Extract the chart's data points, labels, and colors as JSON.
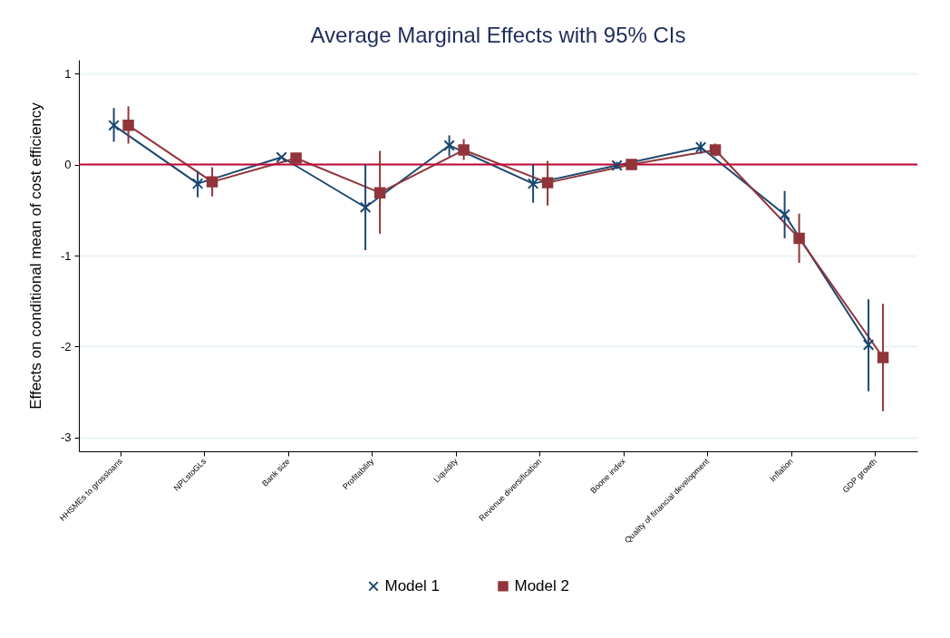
{
  "chart_data": {
    "type": "line",
    "title": "Average Marginal Effects with 95% CIs",
    "ylabel": "Effects on conditional mean of cost efficiency",
    "categories": [
      "HHSMEs to grossloans",
      "NPLstoGLs",
      "Bank size",
      "Profitability",
      "Liquidity",
      "Revenue diversification",
      "Boone index",
      "Quality of financial development",
      "Inflation",
      "GDP growth"
    ],
    "series": [
      {
        "name": "Model 1",
        "color": "#1a476f",
        "marker": "cross",
        "values": [
          0.43,
          -0.21,
          0.08,
          -0.47,
          0.21,
          -0.21,
          -0.01,
          0.19,
          -0.55,
          -1.98
        ],
        "errors": [
          [
            0.25,
            0.62
          ],
          [
            -0.36,
            -0.07
          ],
          null,
          [
            -0.94,
            0.0
          ],
          [
            0.09,
            0.32
          ],
          [
            -0.42,
            0.0
          ],
          [
            -0.05,
            0.03
          ],
          [
            0.12,
            0.25
          ],
          [
            -0.81,
            -0.29
          ],
          [
            -2.49,
            -1.48
          ]
        ]
      },
      {
        "name": "Model 2",
        "color": "#90353b",
        "marker": "square",
        "values": [
          0.43,
          -0.19,
          0.07,
          -0.31,
          0.16,
          -0.2,
          0.0,
          0.16,
          -0.81,
          -2.12
        ],
        "errors": [
          [
            0.23,
            0.64
          ],
          [
            -0.35,
            -0.03
          ],
          null,
          [
            -0.76,
            0.15
          ],
          [
            0.05,
            0.28
          ],
          [
            -0.45,
            0.04
          ],
          [
            -0.05,
            0.05
          ],
          [
            0.09,
            0.23
          ],
          [
            -1.08,
            -0.54
          ],
          [
            -2.71,
            -1.53
          ]
        ]
      }
    ],
    "ylim": [
      -3.15,
      1.15
    ],
    "yticks": [
      -3,
      -2,
      -1,
      0,
      1
    ],
    "grid": "y",
    "legend": "bottom",
    "line_style": "solid",
    "ref_lines": [
      {
        "axis": "y",
        "value": 0,
        "color": "#c10534"
      }
    ]
  }
}
